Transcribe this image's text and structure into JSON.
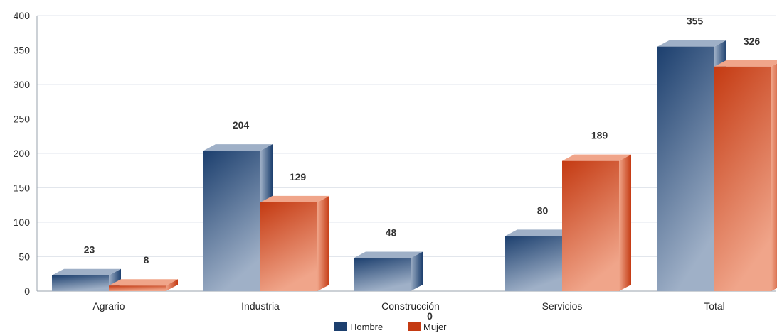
{
  "chart_data": {
    "type": "bar",
    "categories": [
      "Agrario",
      "Industria",
      "Construcción",
      "Servicios",
      "Total"
    ],
    "series": [
      {
        "name": "Hombre",
        "values": [
          23,
          204,
          48,
          80,
          355
        ],
        "color": "#1c3f6e",
        "light": "#9fb0c7"
      },
      {
        "name": "Mujer",
        "values": [
          8,
          129,
          0,
          189,
          326
        ],
        "color": "#c43a12",
        "light": "#f0a58a"
      }
    ],
    "ylim": [
      0,
      400
    ],
    "yticks": [
      0,
      50,
      100,
      150,
      200,
      250,
      300,
      350,
      400
    ],
    "grid": true,
    "legend_position": "bottom-center",
    "title": "",
    "xlabel": "",
    "ylabel": ""
  }
}
